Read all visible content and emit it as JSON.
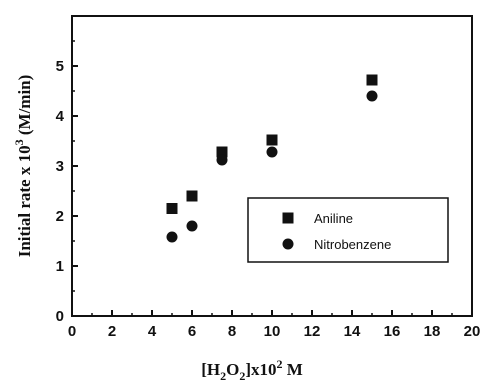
{
  "chart_data": {
    "type": "scatter",
    "title": "",
    "xlabel": "[H2O2]x10² M",
    "ylabel": "Initial rate x 10³ (M/min)",
    "xlabel_parts": {
      "open": "[H",
      "sub1": "2",
      "mid": "O",
      "sub2": "2",
      "close": "]x10",
      "sup": "2",
      "unit": " M"
    },
    "ylabel_parts": {
      "main": "Initial rate x 10",
      "sup": "3",
      "unit": " (M/min)"
    },
    "xlim": [
      0,
      20
    ],
    "ylim": [
      0,
      6
    ],
    "x_ticks": [
      0,
      2,
      4,
      6,
      8,
      10,
      12,
      14,
      16,
      18,
      20
    ],
    "y_ticks": [
      0,
      1,
      2,
      3,
      4,
      5
    ],
    "grid": false,
    "legend_position": "center-right",
    "series": [
      {
        "name": "Aniline",
        "marker": "square",
        "color": "#111111",
        "x": [
          5,
          6,
          7.5,
          10,
          15
        ],
        "y": [
          2.15,
          2.4,
          3.28,
          3.52,
          4.72
        ]
      },
      {
        "name": "Nitrobenzene",
        "marker": "circle",
        "color": "#111111",
        "x": [
          5,
          6,
          7.5,
          10,
          15
        ],
        "y": [
          1.58,
          1.8,
          3.12,
          3.28,
          4.4
        ]
      }
    ]
  }
}
